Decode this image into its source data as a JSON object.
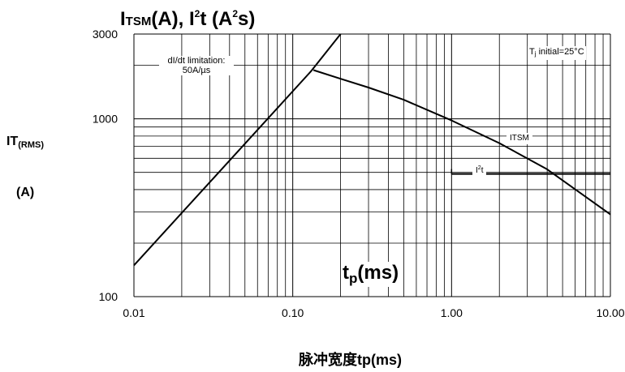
{
  "title": {
    "prefix": "I",
    "sub": "TSM",
    "mid": "(A), I",
    "sup": "2",
    "suffix": "t (A",
    "sup2": "2",
    "end": "s)"
  },
  "y_label": {
    "main": "IT",
    "sub": "(RMS)",
    "unit": "(A)"
  },
  "x_label": "脉冲宽度tp(ms)",
  "inner_x_label": {
    "main": "t",
    "sub": "p",
    "rest": "(ms)"
  },
  "annotations": {
    "didt_line1": "dI/dt limitation:",
    "didt_line2": "50A/µs",
    "tj_prefix": "T",
    "tj_sub": "j",
    "tj_rest": " initial=25°C",
    "itsm": "ITSM",
    "i2t_prefix": "I",
    "i2t_sup": "2",
    "i2t_rest": "t"
  },
  "chart_data": {
    "type": "line",
    "x_scale": "log",
    "y_scale": "log",
    "xlim": [
      0.01,
      10
    ],
    "ylim": [
      100,
      3000
    ],
    "x_ticks": [
      0.01,
      0.1,
      1,
      10
    ],
    "x_tick_labels": [
      "0.01",
      "0.10",
      "1.00",
      "10.00"
    ],
    "y_ticks": [
      100,
      1000,
      3000
    ],
    "y_tick_labels": [
      "100",
      "1000",
      "3000"
    ],
    "grid": true,
    "series": [
      {
        "name": "dI/dt limitation",
        "x": [
          0.01,
          0.13,
          0.2
        ],
        "y": [
          150,
          1850,
          3000
        ]
      },
      {
        "name": "ITSM",
        "x": [
          0.135,
          0.2,
          0.3,
          0.5,
          1.0,
          2.0,
          4.0,
          10.0
        ],
        "y": [
          1880,
          1680,
          1500,
          1280,
          980,
          730,
          520,
          290
        ]
      },
      {
        "name": "I2t",
        "x": [
          1.0,
          10.0
        ],
        "y": [
          490,
          490
        ]
      }
    ]
  }
}
